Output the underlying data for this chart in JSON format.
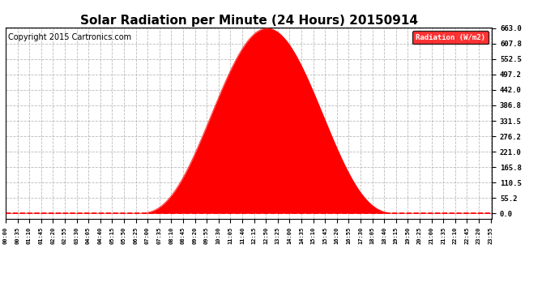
{
  "title": "Solar Radiation per Minute (24 Hours) 20150914",
  "copyright": "Copyright 2015 Cartronics.com",
  "legend_label": "Radiation (W/m2)",
  "yticks": [
    0.0,
    55.2,
    110.5,
    165.8,
    221.0,
    276.2,
    331.5,
    386.8,
    442.0,
    497.2,
    552.5,
    607.8,
    663.0
  ],
  "ymax": 663.0,
  "fill_color": "#FF0000",
  "line_color": "#FF0000",
  "grid_color": "#AAAAAA",
  "background_color": "#FFFFFF",
  "title_fontsize": 11,
  "copyright_fontsize": 7,
  "peak_minute": 770,
  "peak_value": 663.0,
  "sunrise_minute": 393,
  "sunset_minute": 1155,
  "total_minutes": 1440,
  "tick_interval": 35
}
